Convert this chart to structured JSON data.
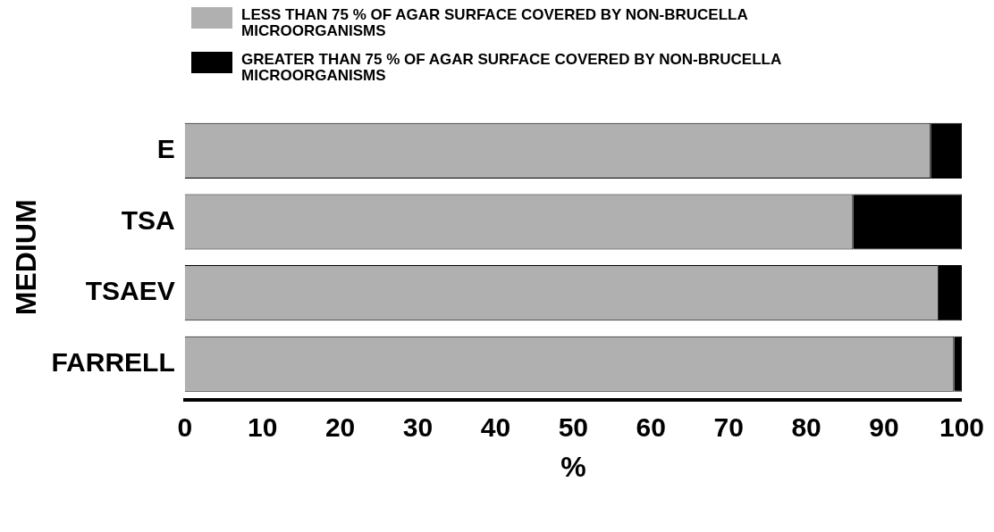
{
  "chart_data": {
    "type": "bar",
    "orientation": "horizontal",
    "stacked": true,
    "xlabel": "%",
    "ylabel": "MEDIUM",
    "categories": [
      "E",
      "TSA",
      "TSAEV",
      "FARRELL"
    ],
    "series": [
      {
        "name": "LESS THAN 75 % OF AGAR SURFACE COVERED BY NON-BRUCELLA MICROORGANISMS",
        "color": "#b0b0b0",
        "values": [
          96,
          86,
          97,
          99
        ]
      },
      {
        "name": "GREATER THAN 75 % OF AGAR SURFACE COVERED BY NON-BRUCELLA MICROORGANISMS",
        "color": "#000000",
        "values": [
          4,
          14,
          3,
          1
        ]
      }
    ],
    "xlim": [
      0,
      100
    ],
    "xticks": [
      0,
      10,
      20,
      30,
      40,
      50,
      60,
      70,
      80,
      90,
      100
    ],
    "grid": false,
    "legend": "top"
  }
}
